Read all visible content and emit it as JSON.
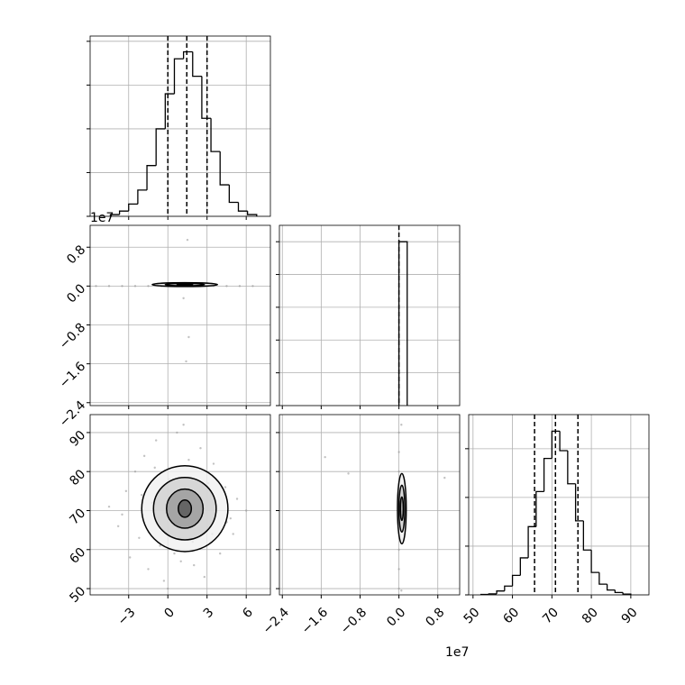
{
  "chart_data": [
    {
      "type": "histogram",
      "bins": [
        -4.4,
        -3.7,
        -3.0,
        -2.3,
        -1.6,
        -0.9,
        -0.2,
        0.5,
        1.2,
        1.9,
        2.6,
        3.3,
        4.0,
        4.7,
        5.4,
        6.1,
        6.8
      ],
      "counts": [
        10,
        30,
        70,
        150,
        290,
        500,
        700,
        900,
        940,
        800,
        560,
        370,
        180,
        80,
        30,
        10
      ],
      "quantiles": [
        0.0,
        1.45,
        3.0
      ],
      "xlim": [
        -5.95,
        7.85
      ],
      "ylim": [
        0,
        1030
      ],
      "xticks": [
        -3,
        0,
        3,
        6
      ],
      "yticks": [
        0,
        250,
        500,
        750,
        1000
      ],
      "xtick_labels": false,
      "ytick_labels": false,
      "grid": true,
      "color": "#000000"
    },
    {
      "type": "scatter",
      "x": [
        -5.5,
        -4.5,
        -3.5,
        -2.5,
        -1.5,
        -0.5,
        0.5,
        1.5,
        2.5,
        3.5,
        4.5,
        5.5,
        6.5,
        1.5,
        1.2,
        1.6,
        1.4
      ],
      "y": [
        0,
        0,
        0,
        0,
        0,
        0,
        0,
        0,
        0,
        0,
        0,
        0,
        0,
        0.95,
        -0.25,
        -1.05,
        -1.55
      ],
      "contours": [
        {
          "cx": 1.3,
          "cy": 0.03,
          "rx": 2.5,
          "ry": 0.04
        },
        {
          "cx": 1.3,
          "cy": 0.03,
          "rx": 1.5,
          "ry": 0.025
        },
        {
          "cx": 1.3,
          "cy": 0.03,
          "rx": 0.6,
          "ry": 0.012
        }
      ],
      "xlim": [
        -5.95,
        7.85
      ],
      "ylim": [
        -2.46,
        1.25
      ],
      "xticks": [
        -3,
        0,
        3,
        6
      ],
      "yticks": [
        {
          "value": -2.4,
          "label": "−2.4"
        },
        {
          "value": -1.6,
          "label": "−1.6"
        },
        {
          "value": -0.8,
          "label": "−0.8"
        },
        {
          "value": 0.0,
          "label": "0.0"
        },
        0.8
      ],
      "y_offset_label": "1e7",
      "xtick_labels": false,
      "ytick_labels": true,
      "grid": true,
      "color": "#000000"
    },
    {
      "type": "histogram",
      "bins": [
        0.0,
        0.17
      ],
      "counts": [
        5000
      ],
      "quantiles": [
        0.0
      ],
      "xlim": [
        -2.46,
        1.25
      ],
      "ylim": [
        0,
        5500
      ],
      "xticks": [
        -2.4,
        -1.6,
        -0.8,
        0.0,
        0.8
      ],
      "yticks": [
        0,
        1000,
        2000,
        3000,
        4000,
        5000
      ],
      "xtick_labels": false,
      "ytick_labels": false,
      "grid": true,
      "color": "#000000"
    },
    {
      "type": "scatter",
      "x": [
        -4.5,
        -3.8,
        -3.2,
        -2.9,
        -2.5,
        -2.2,
        -1.8,
        -1.5,
        -1.2,
        -0.9,
        -0.6,
        -0.3,
        0.1,
        0.4,
        0.7,
        1.0,
        1.3,
        1.6,
        1.9,
        2.2,
        2.5,
        2.8,
        3.1,
        3.4,
        3.7,
        4.0,
        4.4,
        4.8,
        5.3,
        6.0,
        -3.5,
        -1.0,
        0.5,
        2.0,
        3.5,
        5.0,
        -2.0,
        1.2,
        4.5,
        0.0
      ],
      "y": [
        71,
        66,
        75,
        58,
        80,
        63,
        84,
        55,
        72,
        88,
        61,
        52,
        78,
        66,
        90,
        57,
        74,
        83,
        62,
        69,
        86,
        53,
        77,
        64,
        71,
        59,
        76,
        68,
        73,
        70,
        69,
        81,
        59,
        56,
        82,
        64,
        74,
        92,
        67,
        50
      ],
      "contours": [
        {
          "cx": 1.3,
          "cy": 70.5,
          "rx": 3.3,
          "ry": 11
        },
        {
          "cx": 1.3,
          "cy": 70.5,
          "rx": 2.4,
          "ry": 8
        },
        {
          "cx": 1.3,
          "cy": 70.5,
          "rx": 1.4,
          "ry": 5
        },
        {
          "cx": 1.3,
          "cy": 70.5,
          "rx": 0.5,
          "ry": 2.2
        }
      ],
      "xlim": [
        -5.95,
        7.85
      ],
      "ylim": [
        48.4,
        94.6
      ],
      "xticks": [
        {
          "value": -3,
          "label": "−3"
        },
        0,
        3,
        6
      ],
      "yticks": [
        50,
        60,
        70,
        80,
        90
      ],
      "xtick_labels": true,
      "ytick_labels": true,
      "grid": true,
      "color": "#000000"
    },
    {
      "type": "scatter",
      "x": [
        0,
        0,
        0,
        0,
        0,
        0,
        0,
        0,
        0,
        -1.52,
        -1.04,
        0.94,
        0.05,
        0.05
      ],
      "y": [
        50,
        55,
        60,
        65,
        70,
        75,
        80,
        85,
        90,
        83.7,
        79.5,
        78.4,
        92,
        49.5
      ],
      "contours": [
        {
          "cx": 0.06,
          "cy": 70.5,
          "rx": 0.09,
          "ry": 9
        },
        {
          "cx": 0.06,
          "cy": 70.5,
          "rx": 0.06,
          "ry": 6
        },
        {
          "cx": 0.06,
          "cy": 70.5,
          "rx": 0.03,
          "ry": 3
        }
      ],
      "xlim": [
        -2.46,
        1.25
      ],
      "ylim": [
        48.4,
        94.6
      ],
      "xticks": [
        {
          "value": -2.4,
          "label": "−2.4"
        },
        {
          "value": -1.6,
          "label": "−1.6"
        },
        {
          "value": -0.8,
          "label": "−0.8"
        },
        {
          "value": 0.0,
          "label": "0.0"
        },
        0.8
      ],
      "yticks": [
        50,
        60,
        70,
        80,
        90
      ],
      "x_offset_label": "1e7",
      "xtick_labels": true,
      "ytick_labels": false,
      "grid": true,
      "color": "#000000"
    },
    {
      "type": "histogram",
      "bins": [
        52,
        54,
        56,
        58,
        60,
        62,
        64,
        66,
        68,
        70,
        72,
        74,
        76,
        78,
        80,
        82,
        84,
        86,
        88,
        90
      ],
      "counts": [
        2,
        5,
        20,
        45,
        100,
        190,
        350,
        530,
        700,
        840,
        740,
        570,
        380,
        230,
        115,
        55,
        25,
        12,
        4
      ],
      "quantiles": [
        65.6,
        70.9,
        76.6
      ],
      "xlim": [
        48.9,
        94.6
      ],
      "ylim": [
        0,
        925
      ],
      "xticks": [
        50,
        60,
        70,
        80,
        90
      ],
      "yticks": [
        0,
        250,
        500,
        750
      ],
      "xtick_labels": true,
      "ytick_labels": false,
      "grid": true,
      "color": "#000000"
    }
  ]
}
